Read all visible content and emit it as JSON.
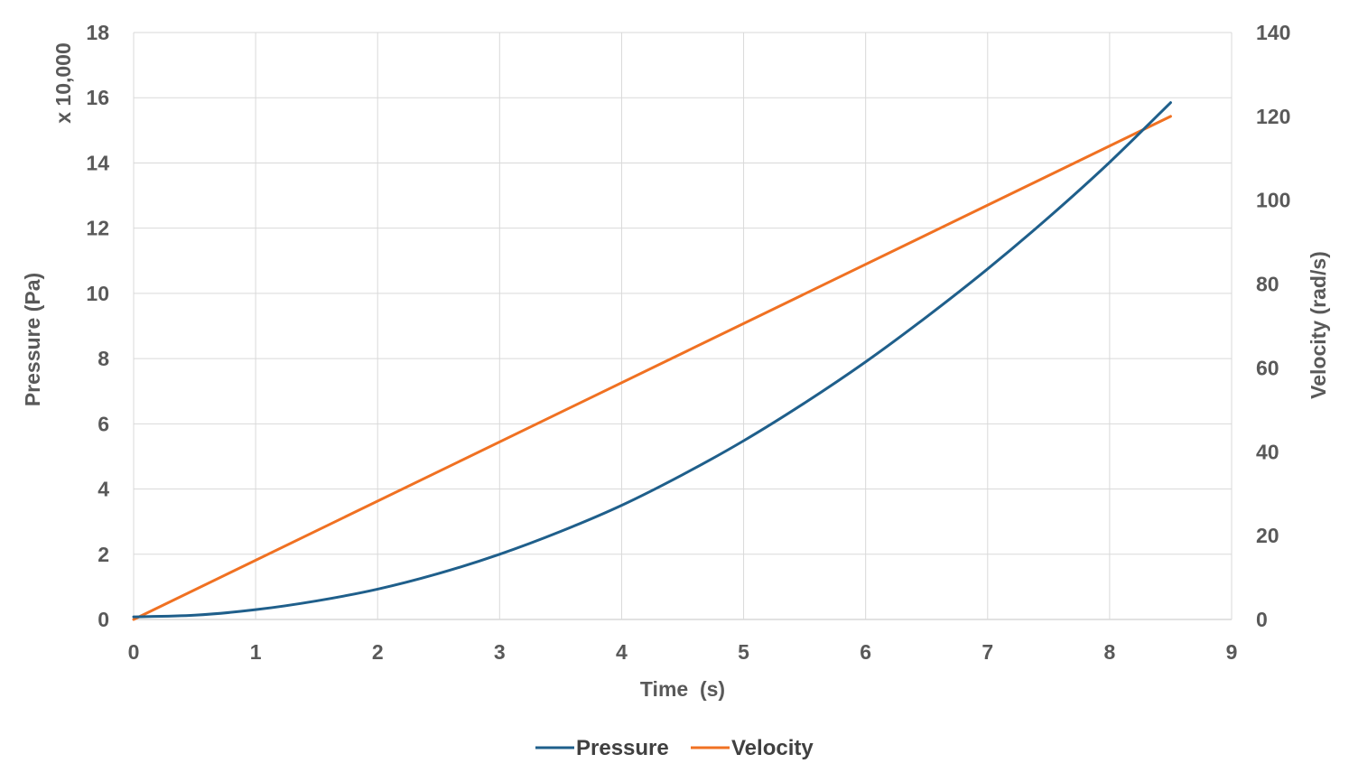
{
  "chart_data": {
    "type": "line",
    "title": "",
    "xlabel": "Time  (s)",
    "ylabel_left": "Pressure (Pa)",
    "ylabel_left_multiplier": "x 10,000",
    "ylabel_right": "Velocity (rad/s)",
    "xlim": [
      0,
      9
    ],
    "ylim_left": [
      0,
      18
    ],
    "ylim_right": [
      0,
      140
    ],
    "x_ticks": [
      "0",
      "1",
      "2",
      "3",
      "4",
      "5",
      "6",
      "7",
      "8",
      "9"
    ],
    "y_left_ticks": [
      "0",
      "2",
      "4",
      "6",
      "8",
      "10",
      "12",
      "14",
      "16",
      "18"
    ],
    "y_right_ticks": [
      "0",
      "20",
      "40",
      "60",
      "80",
      "100",
      "120",
      "140"
    ],
    "grid": true,
    "legend_position": "bottom",
    "series": [
      {
        "name": "Pressure",
        "axis": "left",
        "color": "#1f5f8b",
        "x": [
          0,
          0.5,
          1,
          1.5,
          2,
          2.5,
          3,
          3.5,
          4,
          4.5,
          5,
          5.5,
          6,
          6.5,
          7,
          7.5,
          8,
          8.5
        ],
        "y": [
          0.08,
          0.13,
          0.3,
          0.57,
          0.93,
          1.41,
          2.0,
          2.7,
          3.5,
          4.44,
          5.48,
          6.64,
          7.9,
          9.28,
          10.75,
          12.33,
          14.02,
          15.85
        ]
      },
      {
        "name": "Velocity",
        "axis": "right",
        "color": "#f07122",
        "x": [
          0,
          8.5
        ],
        "y": [
          0,
          120
        ]
      }
    ]
  }
}
